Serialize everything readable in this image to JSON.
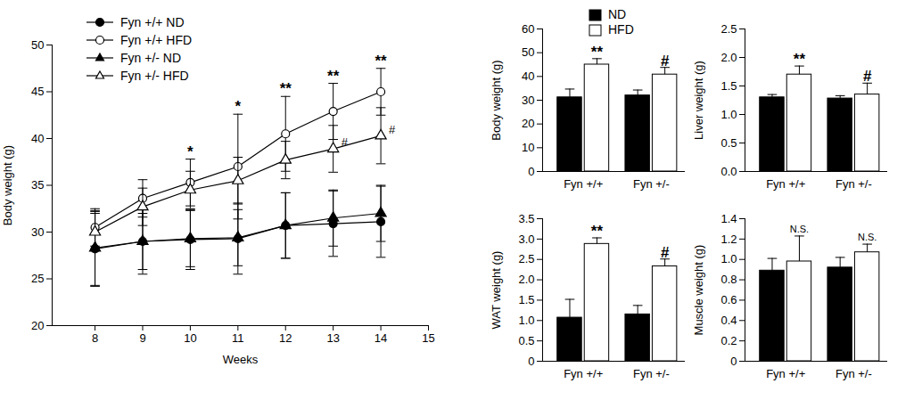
{
  "chart_data": [
    {
      "type": "line",
      "x_label": "Weeks",
      "y_label": "Body weight (g)",
      "x": [
        8,
        9,
        10,
        11,
        12,
        13,
        14
      ],
      "xlim": [
        7.1,
        15
      ],
      "xticks": [
        8,
        9,
        10,
        11,
        12,
        13,
        14,
        15
      ],
      "ylim": [
        20,
        50
      ],
      "yticks": [
        20,
        25,
        30,
        35,
        40,
        45,
        50
      ],
      "legend": "top-left",
      "series": [
        {
          "name": "Fyn +/+ ND",
          "color": "#000000",
          "marker": "circle-filled",
          "values": [
            28.2,
            29.0,
            29.2,
            29.3,
            30.7,
            30.9,
            31.1
          ],
          "errors": [
            4.0,
            3.5,
            3.2,
            3.8,
            3.5,
            3.5,
            3.8
          ]
        },
        {
          "name": "Fyn +/+ HFD",
          "color": "#000000",
          "marker": "circle-open",
          "values": [
            30.5,
            33.6,
            35.3,
            37.0,
            40.5,
            42.9,
            45.0
          ],
          "errors": [
            2.0,
            2.0,
            2.5,
            5.6,
            4.0,
            3.0,
            2.5
          ]
        },
        {
          "name": "Fyn +/- ND",
          "color": "#000000",
          "marker": "triangle-filled",
          "values": [
            28.3,
            29.0,
            29.3,
            29.4,
            30.7,
            31.5,
            32.0
          ],
          "errors": [
            4.0,
            3.0,
            3.0,
            3.0,
            3.5,
            3.0,
            3.0
          ]
        },
        {
          "name": "Fyn +/- HFD",
          "color": "#000000",
          "marker": "triangle-open",
          "values": [
            30.0,
            32.7,
            34.5,
            35.5,
            37.7,
            38.9,
            40.3
          ],
          "errors": [
            2.0,
            2.0,
            2.0,
            2.5,
            2.0,
            2.5,
            3.0
          ]
        }
      ],
      "annotations": [
        {
          "x": 10,
          "series": "Fyn +/+ HFD",
          "text": "*"
        },
        {
          "x": 11,
          "series": "Fyn +/+ HFD",
          "text": "*"
        },
        {
          "x": 12,
          "series": "Fyn +/+ HFD",
          "text": "**"
        },
        {
          "x": 13,
          "series": "Fyn +/+ HFD",
          "text": "**"
        },
        {
          "x": 14,
          "series": "Fyn +/+ HFD",
          "text": "**"
        },
        {
          "x": 13,
          "series": "Fyn +/- HFD",
          "text": "#"
        },
        {
          "x": 14,
          "series": "Fyn +/- HFD",
          "text": "#"
        }
      ]
    },
    {
      "type": "bar",
      "y_label": "Body weight (g)",
      "categories": [
        "Fyn +/+",
        "Fyn +/-"
      ],
      "ylim": [
        0,
        60
      ],
      "yticks": [
        0,
        10,
        20,
        30,
        40,
        50,
        60
      ],
      "legend": "top-right",
      "series": [
        {
          "name": "ND",
          "color": "#000000",
          "values": [
            31.2,
            32.0
          ],
          "errors": [
            3.5,
            2.3
          ]
        },
        {
          "name": "HFD",
          "color": "#ffffff",
          "values": [
            45.0,
            40.8
          ],
          "errors": [
            2.5,
            3.0
          ]
        }
      ],
      "annotations": [
        {
          "category": "Fyn +/+",
          "series": "HFD",
          "text": "**"
        },
        {
          "category": "Fyn +/-",
          "series": "HFD",
          "text": "#"
        }
      ]
    },
    {
      "type": "bar",
      "y_label": "Liver weight (g)",
      "categories": [
        "Fyn +/+",
        "Fyn +/-"
      ],
      "ylim": [
        0,
        2.5
      ],
      "yticks": [
        {
          "value": 0,
          "label": "0.0"
        },
        0.5,
        {
          "value": 1,
          "label": "1.0"
        },
        1.5,
        {
          "value": 2,
          "label": "2.0"
        },
        2.5
      ],
      "series": [
        {
          "name": "ND",
          "color": "#000000",
          "values": [
            1.3,
            1.28
          ],
          "errors": [
            0.05,
            0.05
          ]
        },
        {
          "name": "HFD",
          "color": "#ffffff",
          "values": [
            1.7,
            1.35
          ],
          "errors": [
            0.15,
            0.2
          ]
        }
      ],
      "annotations": [
        {
          "category": "Fyn +/+",
          "series": "HFD",
          "text": "**"
        },
        {
          "category": "Fyn +/-",
          "series": "HFD",
          "text": "#"
        }
      ]
    },
    {
      "type": "bar",
      "y_label": "WAT weight (g)",
      "categories": [
        "Fyn +/+",
        "Fyn +/-"
      ],
      "ylim": [
        0,
        3.5
      ],
      "yticks": [
        0,
        0.5,
        {
          "value": 1,
          "label": "1.0"
        },
        1.5,
        {
          "value": 2,
          "label": "2.0"
        },
        2.5,
        {
          "value": 3,
          "label": "3.0"
        },
        3.5
      ],
      "series": [
        {
          "name": "ND",
          "color": "#000000",
          "values": [
            1.07,
            1.15
          ],
          "errors": [
            0.45,
            0.22
          ]
        },
        {
          "name": "HFD",
          "color": "#ffffff",
          "values": [
            2.88,
            2.33
          ],
          "errors": [
            0.15,
            0.18
          ]
        }
      ],
      "annotations": [
        {
          "category": "Fyn +/+",
          "series": "HFD",
          "text": "**"
        },
        {
          "category": "Fyn +/-",
          "series": "HFD",
          "text": "#"
        }
      ]
    },
    {
      "type": "bar",
      "y_label": "Muscle weight (g)",
      "categories": [
        "Fyn +/+",
        "Fyn +/-"
      ],
      "ylim": [
        0,
        1.4
      ],
      "yticks": [
        0,
        0.2,
        0.4,
        0.6,
        0.8,
        {
          "value": 1,
          "label": "1.0"
        },
        1.2,
        1.4
      ],
      "series": [
        {
          "name": "ND",
          "color": "#000000",
          "values": [
            0.89,
            0.92
          ],
          "errors": [
            0.12,
            0.1
          ]
        },
        {
          "name": "HFD",
          "color": "#ffffff",
          "values": [
            0.98,
            1.07
          ],
          "errors": [
            0.25,
            0.08
          ]
        }
      ],
      "annotations": [
        {
          "category": "Fyn +/+",
          "series": "HFD",
          "text": "N.S."
        },
        {
          "category": "Fyn +/-",
          "series": "HFD",
          "text": "N.S."
        }
      ]
    }
  ]
}
